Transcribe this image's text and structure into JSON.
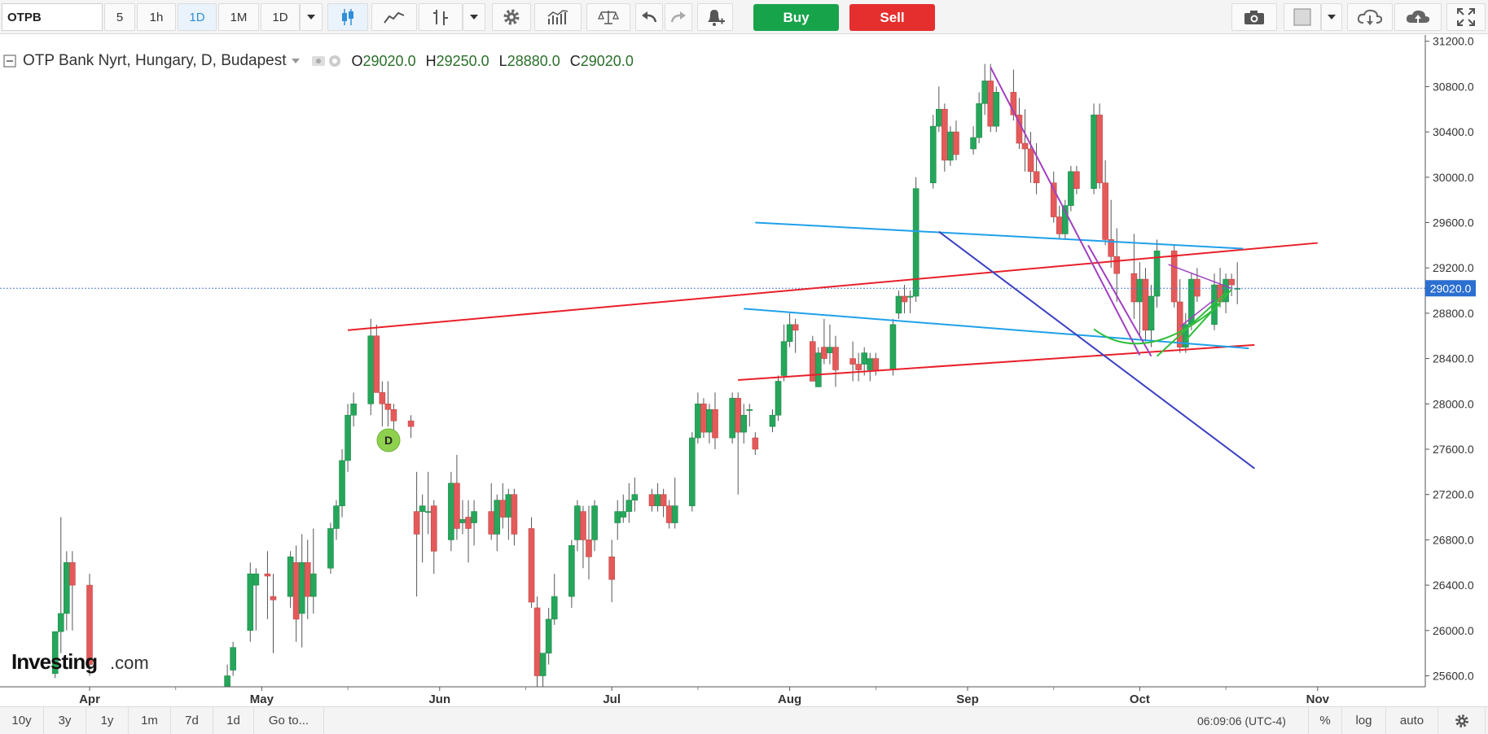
{
  "toolbar": {
    "symbol": "OTPB",
    "intervals": [
      "5",
      "1h",
      "1D",
      "1M",
      "1D"
    ],
    "active_interval_index": 2,
    "buy_label": "Buy",
    "sell_label": "Sell",
    "icons": [
      "candles-icon",
      "line-chart-icon",
      "bar-chart-icon",
      "dropdown-caret-icon",
      "gear-icon",
      "indicators-icon",
      "scales-icon",
      "undo-icon",
      "redo-icon",
      "alert-bell-icon",
      "camera-icon",
      "color-square-icon",
      "cloud-download-icon",
      "cloud-upload-icon",
      "fullscreen-icon"
    ]
  },
  "legend": {
    "title": "OTP Bank Nyrt, Hungary, D, Budapest",
    "o_label": "O",
    "o_value": "29020.0",
    "h_label": "H",
    "h_value": "29250.0",
    "l_label": "L",
    "l_value": "28880.0",
    "c_label": "C",
    "c_value": "29020.0"
  },
  "watermark": {
    "brand": "Investing",
    "suffix": ".com"
  },
  "dividend_marker": "D",
  "current_price_label": "29020.0",
  "bottombar": {
    "ranges": [
      "10y",
      "3y",
      "1y",
      "1m",
      "7d",
      "1d",
      "Go to..."
    ],
    "time": "06:09:06 (UTC-4)",
    "percent": "%",
    "log": "log",
    "auto": "auto"
  },
  "colors": {
    "up": "#26a65b",
    "down": "#e45a5a",
    "wick": "#555555",
    "redline": "#e8202a",
    "cyanline": "#1fa0ea",
    "purpleline": "#a040c0",
    "greenline": "#2fbf3a",
    "blueline": "#3a3fc0",
    "price_line": "#4a7fd0",
    "price_tag": "#2b6fd0"
  },
  "chart_data": {
    "type": "candlestick",
    "title": "OTP Bank Nyrt, Hungary, D, Budapest",
    "x_tick_labels": [
      "Apr",
      "May",
      "Jun",
      "Jul",
      "Aug",
      "Sep",
      "Oct",
      "Nov"
    ],
    "y_tick_labels": [
      "25600.0",
      "26000.0",
      "26400.0",
      "26800.0",
      "27200.0",
      "27600.0",
      "28000.0",
      "28400.0",
      "28800.0",
      "29200.0",
      "29600.0",
      "30000.0",
      "30400.0",
      "30800.0",
      "31200.0"
    ],
    "ylim": [
      25580,
      31250
    ],
    "last_price": 29020,
    "candles": [
      {
        "date": "2019-03-26",
        "o": 25620,
        "h": 25990,
        "l": 25580,
        "c": 25990
      },
      {
        "date": "2019-03-27",
        "o": 25990,
        "h": 27000,
        "l": 25800,
        "c": 26150
      },
      {
        "date": "2019-03-28",
        "o": 26150,
        "h": 26700,
        "l": 26000,
        "c": 26600
      },
      {
        "date": "2019-03-29",
        "o": 26600,
        "h": 26700,
        "l": 26000,
        "c": 26400
      },
      {
        "date": "2019-04-01",
        "o": 26400,
        "h": 26500,
        "l": 25600,
        "c": 25700
      },
      {
        "date": "2019-04-25",
        "o": 25500,
        "h": 25700,
        "l": 25400,
        "c": 25600
      },
      {
        "date": "2019-04-26",
        "o": 25650,
        "h": 25900,
        "l": 25600,
        "c": 25850
      },
      {
        "date": "2019-04-29",
        "o": 26000,
        "h": 26600,
        "l": 25900,
        "c": 26500
      },
      {
        "date": "2019-04-30",
        "o": 26400,
        "h": 26550,
        "l": 26000,
        "c": 26500
      },
      {
        "date": "2019-05-02",
        "o": 26500,
        "h": 26700,
        "l": 26100,
        "c": 26480
      },
      {
        "date": "2019-05-03",
        "o": 26300,
        "h": 26500,
        "l": 25800,
        "c": 26270
      },
      {
        "date": "2019-05-06",
        "o": 26300,
        "h": 26700,
        "l": 26200,
        "c": 26650
      },
      {
        "date": "2019-05-07",
        "o": 26600,
        "h": 26750,
        "l": 25900,
        "c": 26100
      },
      {
        "date": "2019-05-08",
        "o": 26150,
        "h": 26850,
        "l": 25850,
        "c": 26600
      },
      {
        "date": "2019-05-09",
        "o": 26600,
        "h": 26800,
        "l": 26100,
        "c": 26300
      },
      {
        "date": "2019-05-10",
        "o": 26300,
        "h": 26900,
        "l": 26150,
        "c": 26500
      },
      {
        "date": "2019-05-13",
        "o": 26550,
        "h": 26950,
        "l": 26500,
        "c": 26900
      },
      {
        "date": "2019-05-14",
        "o": 26900,
        "h": 27150,
        "l": 26800,
        "c": 27100
      },
      {
        "date": "2019-05-15",
        "o": 27100,
        "h": 27600,
        "l": 27000,
        "c": 27500
      },
      {
        "date": "2019-05-16",
        "o": 27500,
        "h": 28000,
        "l": 27400,
        "c": 27900
      },
      {
        "date": "2019-05-17",
        "o": 27900,
        "h": 28100,
        "l": 27800,
        "c": 28000
      },
      {
        "date": "2019-05-20",
        "o": 28000,
        "h": 28750,
        "l": 27900,
        "c": 28600
      },
      {
        "date": "2019-05-21",
        "o": 28600,
        "h": 28700,
        "l": 28100,
        "c": 28100
      },
      {
        "date": "2019-05-22",
        "o": 28100,
        "h": 28200,
        "l": 27800,
        "c": 28000
      },
      {
        "date": "2019-05-23",
        "o": 28000,
        "h": 28200,
        "l": 27800,
        "c": 27950
      },
      {
        "date": "2019-05-24",
        "o": 27950,
        "h": 28000,
        "l": 27600,
        "c": 27850
      },
      {
        "date": "2019-05-27",
        "o": 27850,
        "h": 27900,
        "l": 27700,
        "c": 27800
      },
      {
        "date": "2019-05-28",
        "o": 27050,
        "h": 27400,
        "l": 26300,
        "c": 26850
      },
      {
        "date": "2019-05-29",
        "o": 27050,
        "h": 27200,
        "l": 26600,
        "c": 27100
      },
      {
        "date": "2019-05-30",
        "o": 27050,
        "h": 27400,
        "l": 26850,
        "c": 27050
      },
      {
        "date": "2019-05-31",
        "o": 27100,
        "h": 27150,
        "l": 26500,
        "c": 26700
      },
      {
        "date": "2019-06-03",
        "o": 26800,
        "h": 27400,
        "l": 26700,
        "c": 27300
      },
      {
        "date": "2019-06-04",
        "o": 27300,
        "h": 27550,
        "l": 26800,
        "c": 26900
      },
      {
        "date": "2019-06-05",
        "o": 26950,
        "h": 27150,
        "l": 26850,
        "c": 26980
      },
      {
        "date": "2019-06-06",
        "o": 27000,
        "h": 27150,
        "l": 26600,
        "c": 26900
      },
      {
        "date": "2019-06-07",
        "o": 26950,
        "h": 27150,
        "l": 26750,
        "c": 27050
      },
      {
        "date": "2019-06-10",
        "o": 27050,
        "h": 27300,
        "l": 26800,
        "c": 26850
      },
      {
        "date": "2019-06-11",
        "o": 26850,
        "h": 27200,
        "l": 26700,
        "c": 27150
      },
      {
        "date": "2019-06-12",
        "o": 27150,
        "h": 27300,
        "l": 26900,
        "c": 27000
      },
      {
        "date": "2019-06-13",
        "o": 27000,
        "h": 27250,
        "l": 26800,
        "c": 27200
      },
      {
        "date": "2019-06-14",
        "o": 27200,
        "h": 27250,
        "l": 26750,
        "c": 26850
      },
      {
        "date": "2019-06-17",
        "o": 26900,
        "h": 27000,
        "l": 26200,
        "c": 26250
      },
      {
        "date": "2019-06-18",
        "o": 26200,
        "h": 26300,
        "l": 25500,
        "c": 25600
      },
      {
        "date": "2019-06-19",
        "o": 25600,
        "h": 25800,
        "l": 25400,
        "c": 25800
      },
      {
        "date": "2019-06-20",
        "o": 25800,
        "h": 26200,
        "l": 25700,
        "c": 26100
      },
      {
        "date": "2019-06-21",
        "o": 26100,
        "h": 26500,
        "l": 26050,
        "c": 26300
      },
      {
        "date": "2019-06-24",
        "o": 26300,
        "h": 26800,
        "l": 26200,
        "c": 26750
      },
      {
        "date": "2019-06-25",
        "o": 26800,
        "h": 27150,
        "l": 26700,
        "c": 27100
      },
      {
        "date": "2019-06-26",
        "o": 27050,
        "h": 27100,
        "l": 26550,
        "c": 26800
      },
      {
        "date": "2019-06-27",
        "o": 26800,
        "h": 27100,
        "l": 26450,
        "c": 26650
      },
      {
        "date": "2019-06-28",
        "o": 26800,
        "h": 27150,
        "l": 26700,
        "c": 27100
      },
      {
        "date": "2019-07-01",
        "o": 26650,
        "h": 26800,
        "l": 26250,
        "c": 26450
      },
      {
        "date": "2019-07-02",
        "o": 26950,
        "h": 27150,
        "l": 26800,
        "c": 27050
      },
      {
        "date": "2019-07-03",
        "o": 27000,
        "h": 27200,
        "l": 26950,
        "c": 27050
      },
      {
        "date": "2019-07-04",
        "o": 27050,
        "h": 27300,
        "l": 26950,
        "c": 27150
      },
      {
        "date": "2019-07-05",
        "o": 27150,
        "h": 27350,
        "l": 27050,
        "c": 27200
      },
      {
        "date": "2019-07-08",
        "o": 27200,
        "h": 27250,
        "l": 27050,
        "c": 27100
      },
      {
        "date": "2019-07-09",
        "o": 27100,
        "h": 27300,
        "l": 27050,
        "c": 27200
      },
      {
        "date": "2019-07-10",
        "o": 27200,
        "h": 27250,
        "l": 27000,
        "c": 27100
      },
      {
        "date": "2019-07-11",
        "o": 27100,
        "h": 27150,
        "l": 26900,
        "c": 26950
      },
      {
        "date": "2019-07-12",
        "o": 26950,
        "h": 27350,
        "l": 26900,
        "c": 27100
      },
      {
        "date": "2019-07-15",
        "o": 27100,
        "h": 27750,
        "l": 27050,
        "c": 27700
      },
      {
        "date": "2019-07-16",
        "o": 27700,
        "h": 28100,
        "l": 27650,
        "c": 28000
      },
      {
        "date": "2019-07-17",
        "o": 28000,
        "h": 28050,
        "l": 27700,
        "c": 27750
      },
      {
        "date": "2019-07-18",
        "o": 27750,
        "h": 28000,
        "l": 27650,
        "c": 27950
      },
      {
        "date": "2019-07-19",
        "o": 27950,
        "h": 28100,
        "l": 27600,
        "c": 27700
      },
      {
        "date": "2019-07-22",
        "o": 27700,
        "h": 28100,
        "l": 27650,
        "c": 28050
      },
      {
        "date": "2019-07-23",
        "o": 28050,
        "h": 28100,
        "l": 27200,
        "c": 27750
      },
      {
        "date": "2019-07-24",
        "o": 27750,
        "h": 28000,
        "l": 27650,
        "c": 27900
      },
      {
        "date": "2019-07-25",
        "o": 27950,
        "h": 28000,
        "l": 27800,
        "c": 27950
      },
      {
        "date": "2019-07-26",
        "o": 27700,
        "h": 27750,
        "l": 27550,
        "c": 27600
      },
      {
        "date": "2019-07-29",
        "o": 27800,
        "h": 27950,
        "l": 27750,
        "c": 27900
      },
      {
        "date": "2019-07-30",
        "o": 27900,
        "h": 28250,
        "l": 27850,
        "c": 28200
      },
      {
        "date": "2019-07-31",
        "o": 28250,
        "h": 28700,
        "l": 28200,
        "c": 28550
      },
      {
        "date": "2019-08-01",
        "o": 28550,
        "h": 28800,
        "l": 28500,
        "c": 28700
      },
      {
        "date": "2019-08-02",
        "o": 28700,
        "h": 28750,
        "l": 28450,
        "c": 28650
      },
      {
        "date": "2019-08-05",
        "o": 28550,
        "h": 28600,
        "l": 28200,
        "c": 28200
      },
      {
        "date": "2019-08-06",
        "o": 28150,
        "h": 28500,
        "l": 28150,
        "c": 28450
      },
      {
        "date": "2019-08-07",
        "o": 28500,
        "h": 28750,
        "l": 28350,
        "c": 28400
      },
      {
        "date": "2019-08-08",
        "o": 28450,
        "h": 28700,
        "l": 28350,
        "c": 28500
      },
      {
        "date": "2019-08-09",
        "o": 28500,
        "h": 28600,
        "l": 28150,
        "c": 28300
      },
      {
        "date": "2019-08-12",
        "o": 28400,
        "h": 28550,
        "l": 28200,
        "c": 28350
      },
      {
        "date": "2019-08-13",
        "o": 28350,
        "h": 28450,
        "l": 28200,
        "c": 28300
      },
      {
        "date": "2019-08-14",
        "o": 28350,
        "h": 28500,
        "l": 28250,
        "c": 28450
      },
      {
        "date": "2019-08-15",
        "o": 28300,
        "h": 28450,
        "l": 28200,
        "c": 28400
      },
      {
        "date": "2019-08-16",
        "o": 28400,
        "h": 28450,
        "l": 28250,
        "c": 28300
      },
      {
        "date": "2019-08-19",
        "o": 28300,
        "h": 28750,
        "l": 28250,
        "c": 28700
      },
      {
        "date": "2019-08-20",
        "o": 28800,
        "h": 29000,
        "l": 28750,
        "c": 28950
      },
      {
        "date": "2019-08-21",
        "o": 28950,
        "h": 29050,
        "l": 28800,
        "c": 28900
      },
      {
        "date": "2019-08-22",
        "o": 28950,
        "h": 29000,
        "l": 28800,
        "c": 28950
      },
      {
        "date": "2019-08-23",
        "o": 28950,
        "h": 30000,
        "l": 28900,
        "c": 29900
      },
      {
        "date": "2019-08-26",
        "o": 29950,
        "h": 30550,
        "l": 29900,
        "c": 30450
      },
      {
        "date": "2019-08-27",
        "o": 30450,
        "h": 30800,
        "l": 30400,
        "c": 30600
      },
      {
        "date": "2019-08-28",
        "o": 30600,
        "h": 30650,
        "l": 30050,
        "c": 30150
      },
      {
        "date": "2019-08-29",
        "o": 30150,
        "h": 30450,
        "l": 30100,
        "c": 30400
      },
      {
        "date": "2019-08-30",
        "o": 30400,
        "h": 30500,
        "l": 30150,
        "c": 30200
      },
      {
        "date": "2019-09-02",
        "o": 30250,
        "h": 30450,
        "l": 30200,
        "c": 30350
      },
      {
        "date": "2019-09-03",
        "o": 30350,
        "h": 30750,
        "l": 30300,
        "c": 30650
      },
      {
        "date": "2019-09-04",
        "o": 30650,
        "h": 31000,
        "l": 30550,
        "c": 30850
      },
      {
        "date": "2019-09-05",
        "o": 30850,
        "h": 31000,
        "l": 30400,
        "c": 30450
      },
      {
        "date": "2019-09-06",
        "o": 30450,
        "h": 30800,
        "l": 30400,
        "c": 30750
      },
      {
        "date": "2019-09-09",
        "o": 30750,
        "h": 30950,
        "l": 30500,
        "c": 30550
      },
      {
        "date": "2019-09-10",
        "o": 30550,
        "h": 30700,
        "l": 30250,
        "c": 30300
      },
      {
        "date": "2019-09-11",
        "o": 30300,
        "h": 30600,
        "l": 30050,
        "c": 30250
      },
      {
        "date": "2019-09-12",
        "o": 30250,
        "h": 30400,
        "l": 29950,
        "c": 30050
      },
      {
        "date": "2019-09-13",
        "o": 30050,
        "h": 30300,
        "l": 29850,
        "c": 29950
      },
      {
        "date": "2019-09-16",
        "o": 29950,
        "h": 30050,
        "l": 29600,
        "c": 29650
      },
      {
        "date": "2019-09-17",
        "o": 29650,
        "h": 29750,
        "l": 29450,
        "c": 29500
      },
      {
        "date": "2019-09-18",
        "o": 29500,
        "h": 29800,
        "l": 29450,
        "c": 29750
      },
      {
        "date": "2019-09-19",
        "o": 29750,
        "h": 30100,
        "l": 29700,
        "c": 30050
      },
      {
        "date": "2019-09-20",
        "o": 30050,
        "h": 30100,
        "l": 29850,
        "c": 29900
      },
      {
        "date": "2019-09-23",
        "o": 29900,
        "h": 30650,
        "l": 29850,
        "c": 30550
      },
      {
        "date": "2019-09-24",
        "o": 30550,
        "h": 30650,
        "l": 29900,
        "c": 29950
      },
      {
        "date": "2019-09-25",
        "o": 29950,
        "h": 30150,
        "l": 29400,
        "c": 29450
      },
      {
        "date": "2019-09-26",
        "o": 29450,
        "h": 29800,
        "l": 29200,
        "c": 29300
      },
      {
        "date": "2019-09-27",
        "o": 29300,
        "h": 29550,
        "l": 28900,
        "c": 29150
      },
      {
        "date": "2019-09-30",
        "o": 29150,
        "h": 29500,
        "l": 28750,
        "c": 28900
      },
      {
        "date": "2019-10-01",
        "o": 28900,
        "h": 29250,
        "l": 28600,
        "c": 29100
      },
      {
        "date": "2019-10-02",
        "o": 29100,
        "h": 29200,
        "l": 28550,
        "c": 28650
      },
      {
        "date": "2019-10-03",
        "o": 28650,
        "h": 29050,
        "l": 28500,
        "c": 28950
      },
      {
        "date": "2019-10-04",
        "o": 28950,
        "h": 29450,
        "l": 28850,
        "c": 29350
      },
      {
        "date": "2019-10-07",
        "o": 29350,
        "h": 29400,
        "l": 28850,
        "c": 28900
      },
      {
        "date": "2019-10-08",
        "o": 28900,
        "h": 29100,
        "l": 28450,
        "c": 28500
      },
      {
        "date": "2019-10-09",
        "o": 28500,
        "h": 28800,
        "l": 28450,
        "c": 28700
      },
      {
        "date": "2019-10-10",
        "o": 28700,
        "h": 29150,
        "l": 28650,
        "c": 29100
      },
      {
        "date": "2019-10-11",
        "o": 29100,
        "h": 29200,
        "l": 28900,
        "c": 28950
      },
      {
        "date": "2019-10-14",
        "o": 28700,
        "h": 29150,
        "l": 28650,
        "c": 29050
      },
      {
        "date": "2019-10-15",
        "o": 29050,
        "h": 29200,
        "l": 28850,
        "c": 28900
      },
      {
        "date": "2019-10-16",
        "o": 28900,
        "h": 29150,
        "l": 28800,
        "c": 29100
      },
      {
        "date": "2019-10-17",
        "o": 29100,
        "h": 29150,
        "l": 28950,
        "c": 29050
      },
      {
        "date": "2019-10-18",
        "o": 29020,
        "h": 29250,
        "l": 28880,
        "c": 29020
      }
    ]
  }
}
